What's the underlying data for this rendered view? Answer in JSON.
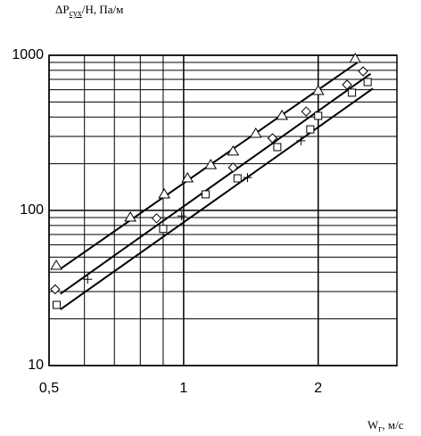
{
  "chart_data": {
    "type": "scatter",
    "ylabel": {
      "main": "ΔP",
      "sub": "сух",
      "rest": "/Н, Па/м"
    },
    "xlabel": {
      "main": "W",
      "sub": "г",
      "rest": ", м/с"
    },
    "log_x": true,
    "log_y": true,
    "grid": true,
    "xlim": [
      0.5,
      3
    ],
    "ylim": [
      10,
      1000
    ],
    "xticks": [
      {
        "value": 0.5,
        "label": "0,5"
      },
      1,
      2
    ],
    "xminor": [
      0.6,
      0.7,
      0.8,
      0.9
    ],
    "yticks": [
      10,
      100,
      1000
    ],
    "yminor": [
      20,
      30,
      40,
      50,
      60,
      70,
      80,
      90,
      200,
      300,
      400,
      500,
      600,
      700,
      800,
      900
    ],
    "series": [
      {
        "marker": "triangle",
        "color": "#000000",
        "x": [
          0.519,
          0.76,
          0.905,
          1.02,
          1.15,
          1.29,
          1.45,
          1.66,
          2.0,
          2.42
        ],
        "values": [
          44,
          90,
          127,
          161,
          196,
          240,
          312,
          407,
          589,
          948
        ]
      },
      {
        "marker": "diamond",
        "color": "#000000",
        "x": [
          0.516,
          0.87,
          1.29,
          1.58,
          1.88,
          2.32,
          2.52
        ],
        "values": [
          31,
          89,
          189,
          292,
          434,
          646,
          788
        ]
      },
      {
        "marker": "square",
        "color": "#000000",
        "x": [
          0.52,
          0.9,
          1.12,
          1.32,
          1.62,
          1.92,
          2.0,
          2.38,
          2.58
        ],
        "values": [
          24.6,
          76,
          127,
          161,
          256,
          333,
          407,
          574,
          672
        ]
      },
      {
        "marker": "plus",
        "color": "#000000",
        "x": [
          0.61,
          0.99,
          1.39,
          1.83
        ],
        "values": [
          36,
          92,
          163,
          281
        ]
      }
    ],
    "fits": [
      {
        "color": "#000000",
        "x": [
          0.53,
          2.45
        ],
        "values": [
          42,
          900
        ]
      },
      {
        "color": "#000000",
        "x": [
          0.53,
          2.62
        ],
        "values": [
          29,
          760
        ]
      },
      {
        "color": "#000000",
        "x": [
          0.53,
          2.65
        ],
        "values": [
          23,
          610
        ]
      }
    ]
  }
}
